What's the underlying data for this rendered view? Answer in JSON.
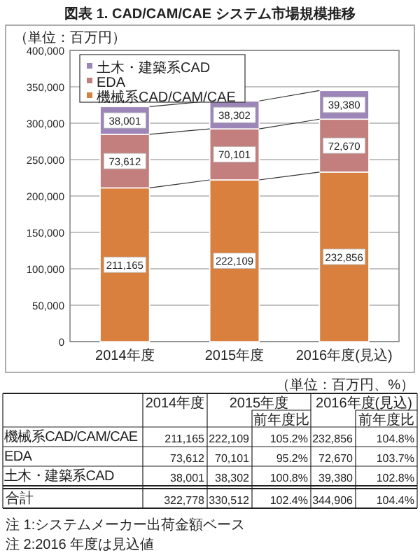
{
  "chart_data": {
    "type": "bar",
    "stacked": true,
    "title": "図表 1. CAD/CAM/CAE システム市場規模推移",
    "ylabel": "（単位：百万円）",
    "categories": [
      "2014年度",
      "2015年度",
      "2016年度(見込)"
    ],
    "series": [
      {
        "name": "機械系CAD/CAM/CAE",
        "color": "#d9803f",
        "values": [
          211165,
          222109,
          232856
        ],
        "value_labels": [
          "211,165",
          "222,109",
          "232,856"
        ]
      },
      {
        "name": "EDA",
        "color": "#c27f7d",
        "values": [
          73612,
          70101,
          72670
        ],
        "value_labels": [
          "73,612",
          "70,101",
          "72,670"
        ]
      },
      {
        "name": "土木・建築系CAD",
        "color": "#9c86b8",
        "values": [
          38001,
          38302,
          39380
        ],
        "value_labels": [
          "38,001",
          "38,302",
          "39,380"
        ]
      }
    ],
    "ylim": [
      0,
      400000
    ],
    "yticks": [
      {
        "value": 0,
        "label": "0"
      },
      {
        "value": 50000,
        "label": "50,000"
      },
      {
        "value": 100000,
        "label": "100,000"
      },
      {
        "value": 150000,
        "label": "150,000"
      },
      {
        "value": 200000,
        "label": "200,000"
      },
      {
        "value": 250000,
        "label": "250,000"
      },
      {
        "value": 300000,
        "label": "300,000"
      },
      {
        "value": 350000,
        "label": "350,000"
      },
      {
        "value": 400000,
        "label": "400,000"
      }
    ],
    "grid": "y",
    "legend": "top left",
    "annotations": [
      "（単位：百万円、%）",
      "前年度比",
      "合計",
      "105.2%",
      "104.8%",
      "95.2%",
      "103.7%",
      "100.8%",
      "102.8%",
      "102.4%",
      "104.4%",
      "注 1:システムメーカー出荷金額ベース",
      "注 2:2016 年度は見込値",
      "322,778",
      "330,512",
      "344,906"
    ]
  }
}
